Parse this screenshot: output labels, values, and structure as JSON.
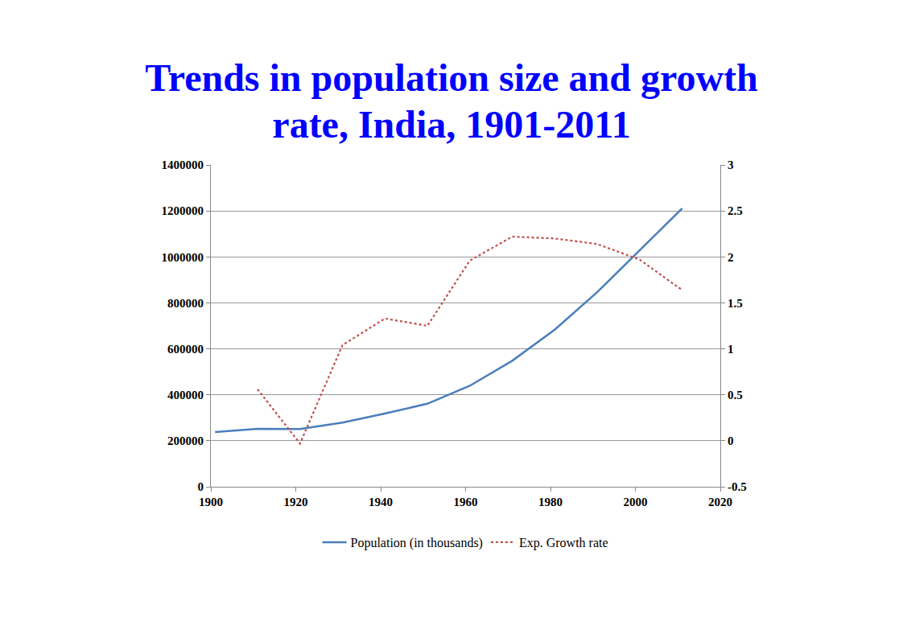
{
  "chart_data": {
    "type": "line",
    "title": "Trends in population size and growth rate, India, 1901-2011",
    "x": [
      1901,
      1911,
      1921,
      1931,
      1941,
      1951,
      1961,
      1971,
      1981,
      1991,
      2001,
      2011
    ],
    "series": [
      {
        "name": "Population (in thousands)",
        "color": "#4a7ebb",
        "line_style": "solid",
        "values": [
          238396,
          252093,
          251321,
          278977,
          318661,
          361088,
          439235,
          548160,
          683329,
          846421,
          1028737,
          1210855
        ]
      },
      {
        "name": "Exp. Growth rate",
        "color": "#c0504d",
        "line_style": "dot",
        "axis": "y2",
        "values": [
          null,
          0.56,
          -0.03,
          1.04,
          1.33,
          1.25,
          1.96,
          2.22,
          2.2,
          2.14,
          1.97,
          1.64
        ]
      }
    ],
    "xlim": [
      1900,
      2020
    ],
    "xticks": [
      1900,
      1920,
      1940,
      1960,
      1980,
      2000,
      2020
    ],
    "ylim": [
      0,
      1400000
    ],
    "yticks": [
      0,
      200000,
      400000,
      600000,
      800000,
      1000000,
      1200000,
      1400000
    ],
    "y2lim": [
      -0.5,
      3
    ],
    "y2ticks": [
      -0.5,
      0,
      0.5,
      1,
      1.5,
      2,
      2.5,
      3
    ],
    "grid": true,
    "legend": "bottom"
  }
}
